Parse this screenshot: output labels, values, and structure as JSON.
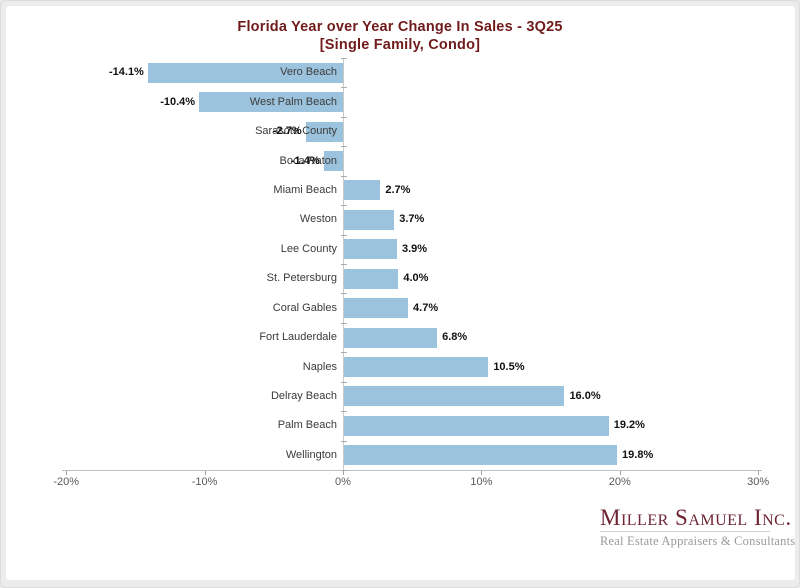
{
  "page": {
    "title_line1": "Florida Year over Year Change In Sales - 3Q25",
    "title_line2": "[Single Family, Condo]"
  },
  "chart_data": {
    "type": "bar",
    "orientation": "horizontal",
    "title": "Florida Year over Year Change In Sales - 3Q25 [Single Family, Condo]",
    "categories": [
      "Vero Beach",
      "West Palm Beach",
      "Sarasota County",
      "Boca Raton",
      "Miami Beach",
      "Weston",
      "Lee County",
      "St. Petersburg",
      "Coral Gables",
      "Fort Lauderdale",
      "Naples",
      "Delray Beach",
      "Palm Beach",
      "Wellington"
    ],
    "values": [
      -14.1,
      -10.4,
      -2.7,
      -1.4,
      2.7,
      3.7,
      3.9,
      4.0,
      4.7,
      6.8,
      10.5,
      16.0,
      19.2,
      19.8
    ],
    "value_labels": [
      "-14.1%",
      "-10.4%",
      "-2.7%",
      "-1.4%",
      "2.7%",
      "3.7%",
      "3.9%",
      "4.0%",
      "4.7%",
      "6.8%",
      "10.5%",
      "16.0%",
      "19.2%",
      "19.8%"
    ],
    "x_ticks": [
      "-20%",
      "-10%",
      "0%",
      "10%",
      "20%",
      "30%"
    ],
    "x_tick_values": [
      -20,
      -10,
      0,
      10,
      20,
      30
    ],
    "xlim": [
      -20,
      30
    ],
    "xlabel": "",
    "ylabel": "",
    "grid": false,
    "legend": "none",
    "bar_color": "#9cc3dd"
  },
  "branding": {
    "company": "Miller Samuel Inc.",
    "tagline": "Real Estate Appraisers & Consultants"
  },
  "colors": {
    "title": "#701b1b",
    "bar": "#9cc3dd",
    "axis_line": "#bfbfbf",
    "tick_label": "#595959",
    "logo": "#6e2533",
    "tagline": "#9a9a9a",
    "frame_bg": "#ececec"
  }
}
